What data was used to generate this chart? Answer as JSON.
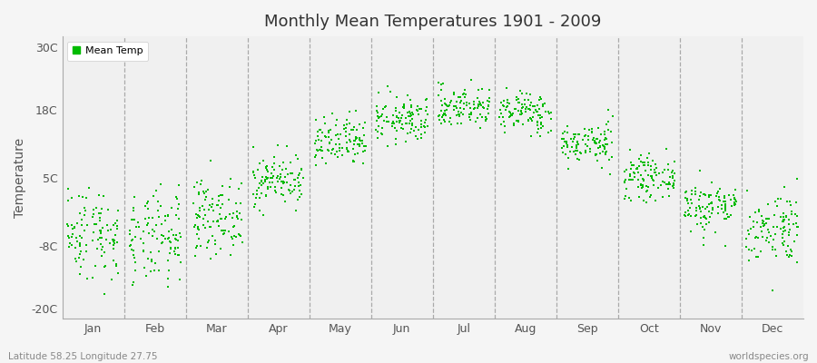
{
  "title": "Monthly Mean Temperatures 1901 - 2009",
  "ylabel": "Temperature",
  "ytick_labels": [
    "-20C",
    "-8C",
    "5C",
    "18C",
    "30C"
  ],
  "ytick_values": [
    -20,
    -8,
    5,
    18,
    30
  ],
  "ylim": [
    -22,
    32
  ],
  "xtick_labels": [
    "Jan",
    "Feb",
    "Mar",
    "Apr",
    "May",
    "Jun",
    "Jul",
    "Aug",
    "Sep",
    "Oct",
    "Nov",
    "Dec"
  ],
  "dot_color": "#00bb00",
  "dot_size": 3,
  "background_color": "#f5f5f5",
  "plot_bg_color": "#f0f0f0",
  "legend_label": "Mean Temp",
  "subtitle_left": "Latitude 58.25 Longitude 27.75",
  "subtitle_right": "worldspecies.org",
  "monthly_means": [
    -5.5,
    -7.0,
    -2.5,
    4.5,
    11.5,
    16.0,
    18.5,
    17.5,
    11.5,
    5.0,
    -0.5,
    -4.5
  ],
  "monthly_stds": [
    4.5,
    4.5,
    3.5,
    2.5,
    2.5,
    2.2,
    2.0,
    2.0,
    2.0,
    2.0,
    2.5,
    3.5
  ],
  "n_years": 109,
  "seed": 42,
  "vline_color": "#999999",
  "vline_positions": [
    1,
    2,
    3,
    4,
    5,
    6,
    7,
    8,
    9,
    10,
    11
  ]
}
